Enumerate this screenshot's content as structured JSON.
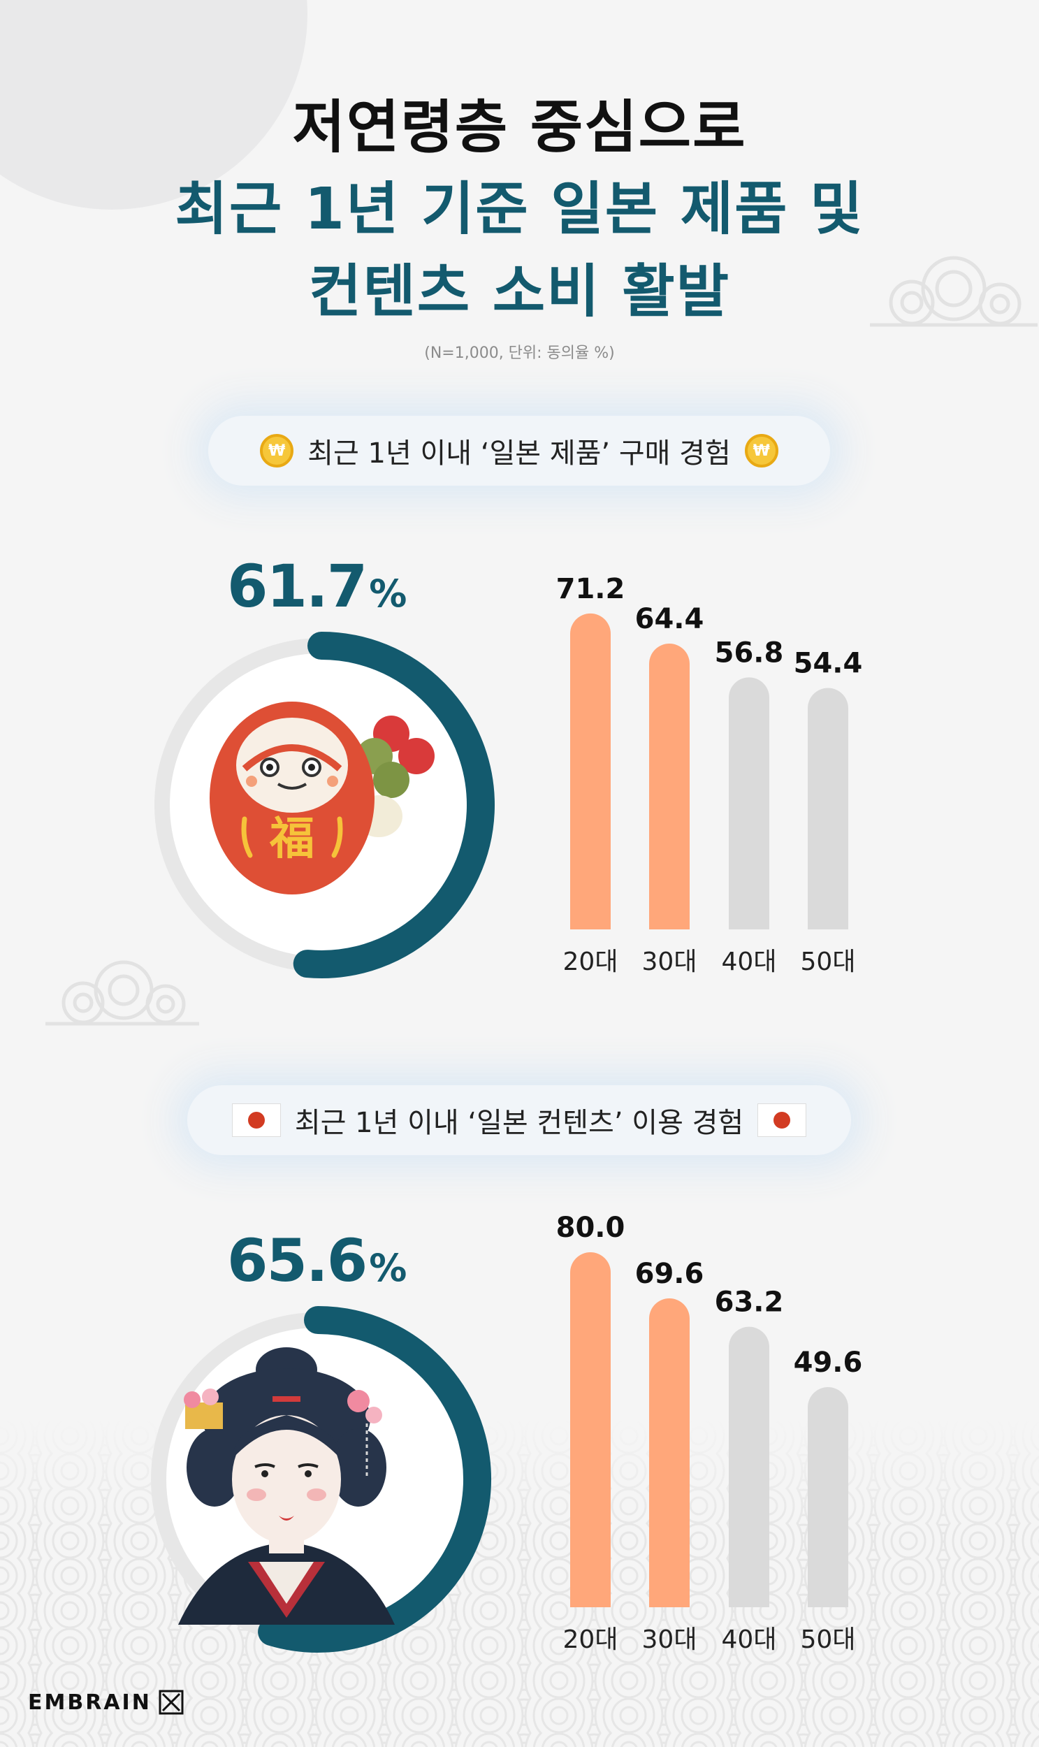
{
  "title": {
    "line1": "저연령층 중심으로",
    "line2": "최근 1년 기준 일본 제품 및",
    "line3": "컨텐츠 소비 활발"
  },
  "note": "(N=1,000, 단위: 동의율 %)",
  "logo": "EMBRAIN",
  "colors": {
    "accent": "#135a6e",
    "young_bars": "#ffa77a",
    "older_bars": "#dadada",
    "ring_track": "#e7e7e7"
  },
  "section1": {
    "heading": "최근 1년 이내 ‘일본 제품’ 구매 경험",
    "icon": "coin-icon",
    "total_value": "61.7",
    "total_unit": "%",
    "illustration": "daruma-doll-icon"
  },
  "section2": {
    "heading": "최근 1년 이내 ‘일본 컨텐츠’ 이용 경험",
    "icon": "japan-flag-icon",
    "total_value": "65.6",
    "total_unit": "%",
    "illustration": "geisha-icon"
  },
  "chart_data": [
    {
      "type": "bar",
      "categories": [
        "20대",
        "30대",
        "40대",
        "50대"
      ],
      "values": [
        71.2,
        64.4,
        56.8,
        54.4
      ],
      "title": "최근 1년 이내 ‘일본 제품’ 구매 경험",
      "total": 61.7,
      "highlight": [
        true,
        true,
        false,
        false
      ],
      "ylim": [
        0,
        100
      ]
    },
    {
      "type": "bar",
      "categories": [
        "20대",
        "30대",
        "40대",
        "50대"
      ],
      "values": [
        80.0,
        69.6,
        63.2,
        49.6
      ],
      "title": "최근 1년 이내 ‘일본 컨텐츠’ 이용 경험",
      "total": 65.6,
      "highlight": [
        true,
        true,
        false,
        false
      ],
      "ylim": [
        0,
        100
      ]
    }
  ]
}
